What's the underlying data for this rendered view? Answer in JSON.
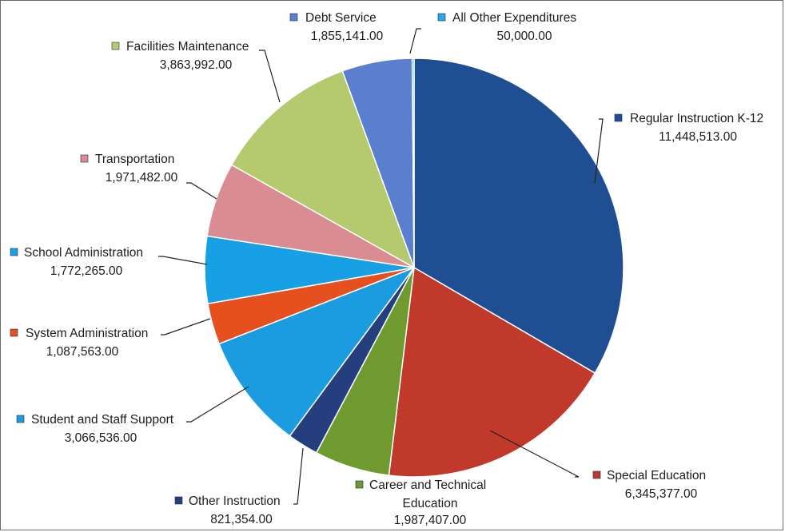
{
  "chart_data": {
    "type": "pie",
    "title": "",
    "start_angle_deg": 0,
    "direction": "clockwise",
    "series": [
      {
        "name": "Regular Instruction K-12",
        "value": 11448513.0,
        "display": "11,448,513.00",
        "color": "#1f4e93"
      },
      {
        "name": "Special Education",
        "value": 6345377.0,
        "display": "6,345,377.00",
        "color": "#c0392b"
      },
      {
        "name": "Career and Technical Education",
        "value": 1987407.0,
        "display": "1,987,407.00",
        "color": "#6e9a2f"
      },
      {
        "name": "Other Instruction",
        "value": 821354.0,
        "display": "821,354.00",
        "color": "#243e7e"
      },
      {
        "name": "Student and Staff Support",
        "value": 3066536.0,
        "display": "3,066,536.00",
        "color": "#1b9be0"
      },
      {
        "name": "System Administration",
        "value": 1087563.0,
        "display": "1,087,563.00",
        "color": "#e6501f"
      },
      {
        "name": "School Administration",
        "value": 1772265.0,
        "display": "1,772,265.00",
        "color": "#17a1e4"
      },
      {
        "name": "Transportation",
        "value": 1971482.0,
        "display": "1,971,482.00",
        "color": "#d98d93"
      },
      {
        "name": "Facilities Maintenance",
        "value": 3863992.0,
        "display": "3,863,992.00",
        "color": "#b5c96f"
      },
      {
        "name": "Debt Service",
        "value": 1855141.0,
        "display": "1,855,141.00",
        "color": "#5b7fcf"
      },
      {
        "name": "All Other Expenditures",
        "value": 50000.0,
        "display": "50,000.00",
        "color": "#27a9e1"
      }
    ]
  }
}
